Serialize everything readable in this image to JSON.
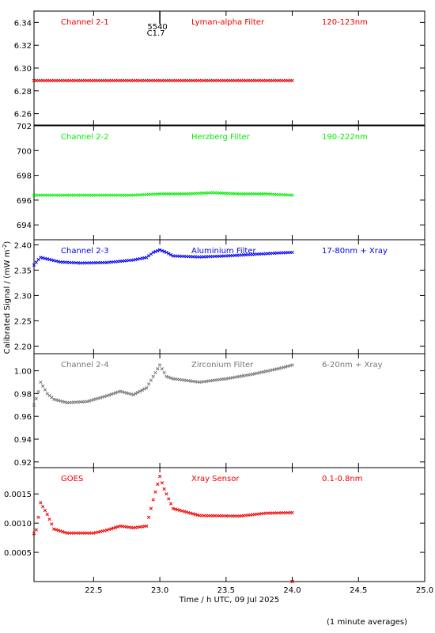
{
  "chart_data": {
    "type": "scatter",
    "x_range": [
      22.05,
      25.0
    ],
    "x_ticks": [
      22.5,
      23.0,
      23.5,
      24.0,
      24.5,
      25.0
    ],
    "x_tick_labels": [
      "22.5",
      "23.0",
      "23.5",
      "24.0",
      "24.5",
      "25.0"
    ],
    "xlabel": "Time / h UTC, 09 Jul 2025",
    "ylabel": "Calibrated Signal / (mW m",
    "ylabel_exponent": "-2",
    "ylabel_close": ")",
    "flare_marker": {
      "x": 23.0,
      "label_top": "5540",
      "label_bottom": "C1.7"
    },
    "panels": [
      {
        "channel": "Channel 2-1",
        "filter": "Lyman-alpha Filter",
        "band": "120-123nm",
        "color": "#ee0000",
        "ylim": [
          6.25,
          6.35
        ],
        "y_ticks": [
          6.26,
          6.28,
          6.3,
          6.32,
          6.34
        ],
        "y_tick_labels": [
          "6.26",
          "6.28",
          "6.30",
          "6.32",
          "6.34"
        ],
        "series": [
          {
            "x": [
              22.05,
              22.3,
              22.6,
              22.9,
              23.2,
              23.5,
              23.8,
              24.0
            ],
            "y": [
              6.289,
              6.289,
              6.289,
              6.289,
              6.289,
              6.289,
              6.289,
              6.289
            ]
          }
        ]
      },
      {
        "channel": "Channel 2-2",
        "filter": "Herzberg Filter",
        "band": "190-222nm",
        "color": "#00ee00",
        "ylim": [
          692.8,
          702.0
        ],
        "y_ticks": [
          694,
          696,
          698,
          700,
          702
        ],
        "y_tick_labels": [
          "694",
          "696",
          "698",
          "700",
          "702"
        ],
        "series": [
          {
            "x": [
              22.05,
              22.2,
              22.4,
              22.6,
              22.8,
              23.0,
              23.2,
              23.4,
              23.6,
              23.8,
              24.0
            ],
            "y": [
              696.4,
              696.4,
              696.4,
              696.4,
              696.4,
              696.5,
              696.5,
              696.6,
              696.5,
              696.5,
              696.4
            ]
          }
        ]
      },
      {
        "channel": "Channel 2-3",
        "filter": "Aluminium Filter",
        "band": "17-80nm + Xray",
        "color": "#0000ee",
        "ylim": [
          2.185,
          2.41
        ],
        "y_ticks": [
          2.2,
          2.25,
          2.3,
          2.35,
          2.4
        ],
        "y_tick_labels": [
          "2.20",
          "2.25",
          "2.30",
          "2.35",
          "2.40"
        ],
        "series": [
          {
            "x": [
              22.05,
              22.08,
              22.1,
              22.15,
              22.25,
              22.4,
              22.6,
              22.8,
              22.9,
              22.95,
              23.0,
              23.05,
              23.1,
              23.3,
              23.5,
              23.7,
              23.9,
              24.0
            ],
            "y": [
              2.36,
              2.37,
              2.375,
              2.372,
              2.366,
              2.364,
              2.365,
              2.37,
              2.375,
              2.385,
              2.39,
              2.385,
              2.378,
              2.376,
              2.378,
              2.381,
              2.384,
              2.385
            ]
          }
        ]
      },
      {
        "channel": "Channel 2-4",
        "filter": "Zirconium Filter",
        "band": "6-20nm + Xray",
        "color": "#777777",
        "ylim": [
          0.915,
          1.015
        ],
        "y_ticks": [
          0.92,
          0.94,
          0.96,
          0.98,
          1.0
        ],
        "y_tick_labels": [
          "0.92",
          "0.94",
          "0.96",
          "0.98",
          "1.00"
        ],
        "series": [
          {
            "x": [
              22.05,
              22.08,
              22.1,
              22.15,
              22.2,
              22.3,
              22.45,
              22.6,
              22.7,
              22.8,
              22.9,
              22.95,
              23.0,
              23.05,
              23.1,
              23.3,
              23.5,
              23.7,
              23.9,
              24.0
            ],
            "y": [
              0.97,
              0.98,
              0.99,
              0.98,
              0.975,
              0.972,
              0.973,
              0.978,
              0.982,
              0.979,
              0.985,
              0.995,
              1.005,
              0.995,
              0.993,
              0.99,
              0.993,
              0.997,
              1.002,
              1.005
            ]
          }
        ]
      },
      {
        "channel": "GOES",
        "filter": "Xray Sensor",
        "band": "0.1-0.8nm",
        "color": "#ee0000",
        "ylim": [
          0.0,
          0.00195
        ],
        "y_ticks": [
          0.0005,
          0.001,
          0.0015
        ],
        "y_tick_labels": [
          "0.0005",
          "0.0010",
          "0.0015"
        ],
        "series": [
          {
            "x": [
              22.05,
              22.07,
              22.1,
              22.15,
              22.2,
              22.3,
              22.5,
              22.6,
              22.7,
              22.8,
              22.9,
              22.95,
              23.0,
              23.03,
              23.1,
              23.3,
              23.6,
              23.8,
              24.0
            ],
            "y": [
              0.00082,
              0.0009,
              0.00135,
              0.00115,
              0.0009,
              0.00083,
              0.00083,
              0.00088,
              0.00095,
              0.00092,
              0.00095,
              0.0014,
              0.0018,
              0.0016,
              0.00125,
              0.00113,
              0.00112,
              0.00117,
              0.00118
            ]
          }
        ]
      }
    ]
  },
  "footnote": "(1 minute averages)"
}
